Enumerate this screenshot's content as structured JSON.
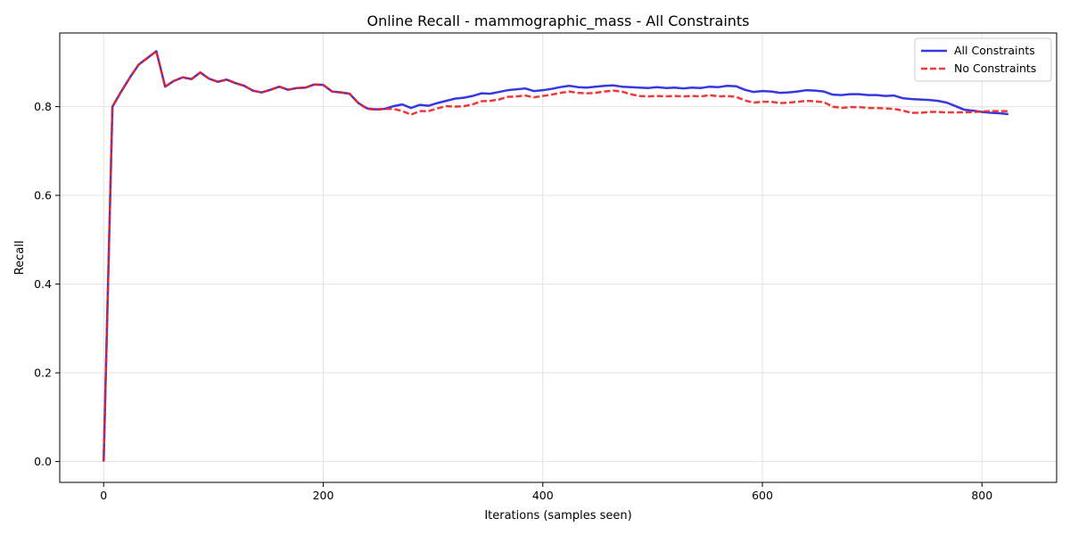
{
  "chart_data": {
    "type": "line",
    "title": "Online Recall - mammographic_mass - All Constraints",
    "xlabel": "Iterations (samples seen)",
    "ylabel": "Recall",
    "xlim": [
      -40,
      868
    ],
    "ylim": [
      -0.047,
      0.966
    ],
    "xticks": [
      0,
      200,
      400,
      600,
      800
    ],
    "yticks": [
      0.0,
      0.2,
      0.4,
      0.6,
      0.8
    ],
    "xtick_labels": [
      "0",
      "200",
      "400",
      "600",
      "800"
    ],
    "ytick_labels": [
      "0.0",
      "0.2",
      "0.4",
      "0.6",
      "0.8"
    ],
    "grid": true,
    "legend_position": "top-right",
    "series": [
      {
        "name": "All Constraints",
        "color": "#2222dd",
        "style": "solid",
        "x": [
          0,
          8,
          16,
          24,
          32,
          40,
          48,
          56,
          64,
          72,
          80,
          88,
          96,
          104,
          112,
          120,
          128,
          136,
          144,
          152,
          160,
          168,
          176,
          184,
          192,
          200,
          208,
          216,
          224,
          232,
          240,
          248,
          256,
          264,
          272,
          280,
          288,
          296,
          304,
          312,
          320,
          328,
          336,
          344,
          352,
          360,
          368,
          376,
          384,
          392,
          400,
          408,
          416,
          424,
          432,
          440,
          448,
          456,
          464,
          472,
          480,
          488,
          496,
          504,
          512,
          520,
          528,
          536,
          544,
          552,
          560,
          568,
          576,
          584,
          592,
          600,
          608,
          616,
          624,
          632,
          640,
          648,
          656,
          664,
          672,
          680,
          688,
          696,
          704,
          712,
          720,
          728,
          736,
          744,
          752,
          760,
          768,
          776,
          784,
          792,
          800,
          808,
          816,
          824
        ],
        "y": [
          0.0,
          0.8,
          0.834,
          0.866,
          0.895,
          0.91,
          0.925,
          0.845,
          0.858,
          0.866,
          0.862,
          0.877,
          0.863,
          0.856,
          0.861,
          0.853,
          0.847,
          0.836,
          0.832,
          0.838,
          0.845,
          0.838,
          0.842,
          0.843,
          0.85,
          0.849,
          0.834,
          0.832,
          0.829,
          0.808,
          0.796,
          0.794,
          0.795,
          0.801,
          0.805,
          0.797,
          0.804,
          0.802,
          0.808,
          0.813,
          0.818,
          0.82,
          0.824,
          0.83,
          0.829,
          0.833,
          0.837,
          0.839,
          0.841,
          0.835,
          0.837,
          0.84,
          0.844,
          0.847,
          0.844,
          0.843,
          0.845,
          0.847,
          0.848,
          0.845,
          0.844,
          0.843,
          0.842,
          0.844,
          0.842,
          0.843,
          0.841,
          0.843,
          0.842,
          0.845,
          0.844,
          0.847,
          0.846,
          0.838,
          0.833,
          0.835,
          0.834,
          0.831,
          0.832,
          0.834,
          0.837,
          0.836,
          0.834,
          0.827,
          0.826,
          0.828,
          0.828,
          0.826,
          0.826,
          0.824,
          0.825,
          0.819,
          0.817,
          0.816,
          0.815,
          0.813,
          0.809,
          0.801,
          0.793,
          0.791,
          0.788,
          0.786,
          0.785,
          0.783
        ]
      },
      {
        "name": "No Constraints",
        "color": "#ee2222",
        "style": "dashed",
        "x": [
          0,
          8,
          16,
          24,
          32,
          40,
          48,
          56,
          64,
          72,
          80,
          88,
          96,
          104,
          112,
          120,
          128,
          136,
          144,
          152,
          160,
          168,
          176,
          184,
          192,
          200,
          208,
          216,
          224,
          232,
          240,
          248,
          256,
          264,
          272,
          280,
          288,
          296,
          304,
          312,
          320,
          328,
          336,
          344,
          352,
          360,
          368,
          376,
          384,
          392,
          400,
          408,
          416,
          424,
          432,
          440,
          448,
          456,
          464,
          472,
          480,
          488,
          496,
          504,
          512,
          520,
          528,
          536,
          544,
          552,
          560,
          568,
          576,
          584,
          592,
          600,
          608,
          616,
          624,
          632,
          640,
          648,
          656,
          664,
          672,
          680,
          688,
          696,
          704,
          712,
          720,
          728,
          736,
          744,
          752,
          760,
          768,
          776,
          784,
          792,
          800,
          808,
          816,
          824
        ],
        "y": [
          0.0,
          0.8,
          0.834,
          0.866,
          0.895,
          0.91,
          0.925,
          0.845,
          0.858,
          0.866,
          0.862,
          0.877,
          0.863,
          0.856,
          0.861,
          0.853,
          0.847,
          0.836,
          0.832,
          0.838,
          0.845,
          0.838,
          0.842,
          0.843,
          0.85,
          0.849,
          0.834,
          0.832,
          0.829,
          0.808,
          0.795,
          0.793,
          0.795,
          0.795,
          0.79,
          0.782,
          0.79,
          0.79,
          0.796,
          0.801,
          0.8,
          0.801,
          0.805,
          0.812,
          0.813,
          0.816,
          0.822,
          0.823,
          0.825,
          0.821,
          0.824,
          0.827,
          0.831,
          0.834,
          0.831,
          0.83,
          0.831,
          0.834,
          0.836,
          0.834,
          0.828,
          0.824,
          0.823,
          0.824,
          0.823,
          0.824,
          0.823,
          0.824,
          0.823,
          0.826,
          0.823,
          0.824,
          0.822,
          0.814,
          0.809,
          0.811,
          0.811,
          0.808,
          0.809,
          0.811,
          0.813,
          0.812,
          0.81,
          0.8,
          0.797,
          0.799,
          0.799,
          0.797,
          0.797,
          0.796,
          0.795,
          0.791,
          0.786,
          0.786,
          0.788,
          0.788,
          0.787,
          0.787,
          0.787,
          0.788,
          0.789,
          0.79,
          0.79,
          0.79
        ]
      }
    ]
  }
}
